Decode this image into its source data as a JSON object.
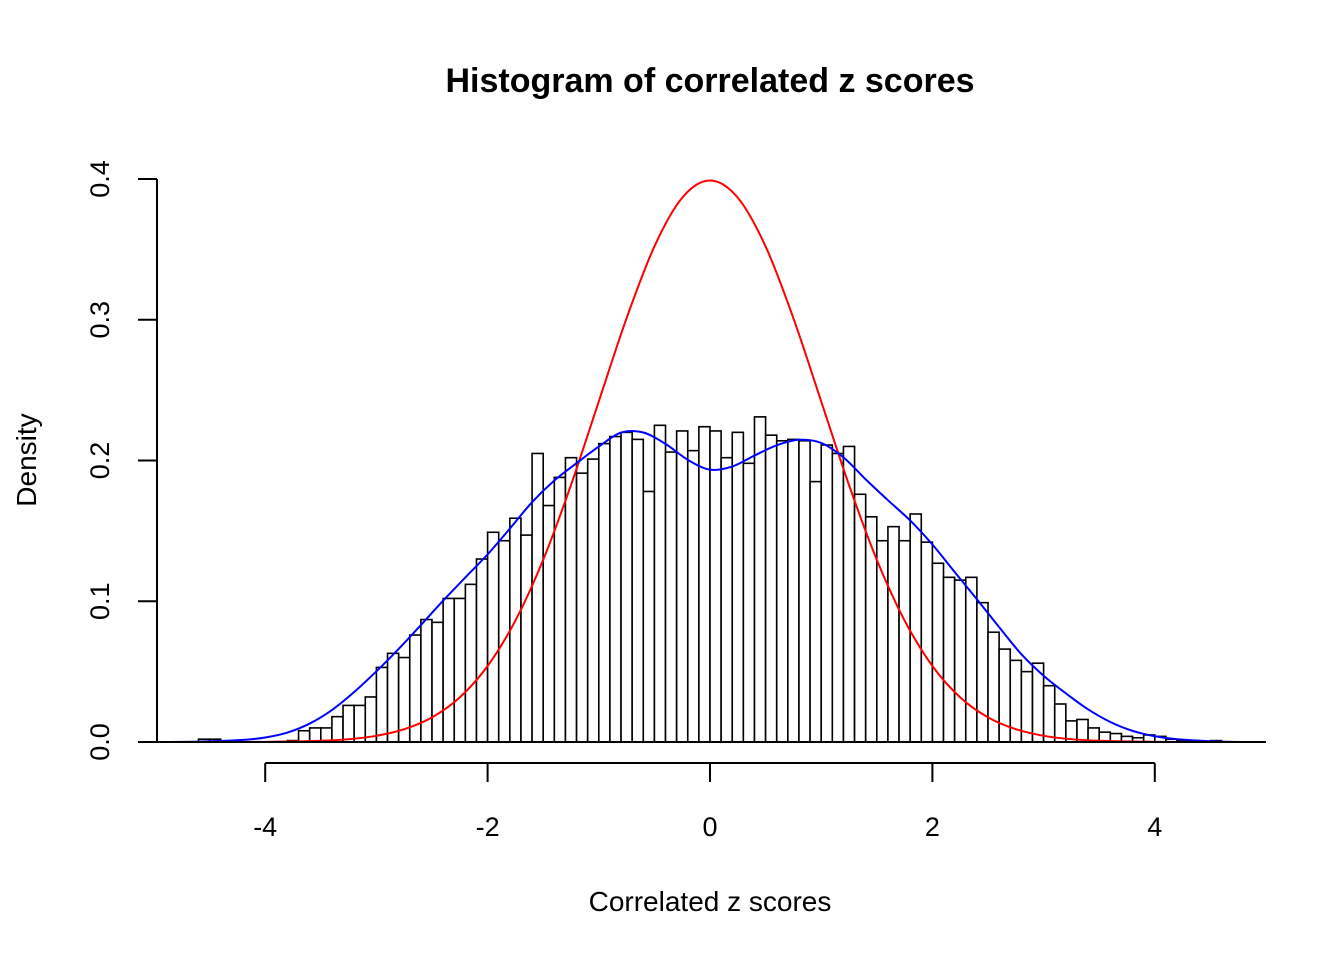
{
  "chart_data": {
    "type": "bar",
    "title": "Histogram of correlated z scores",
    "xlabel": "Correlated z scores",
    "ylabel": "Density",
    "xlim": [
      -5,
      5
    ],
    "ylim": [
      0,
      0.4
    ],
    "x_ticks": [
      "-4",
      "-2",
      "0",
      "2",
      "4"
    ],
    "x_tick_values": [
      -4,
      -2,
      0,
      2,
      4
    ],
    "y_ticks": [
      "0.0",
      "0.1",
      "0.2",
      "0.3",
      "0.4"
    ],
    "y_tick_values": [
      0,
      0.1,
      0.2,
      0.3,
      0.4
    ],
    "bin_width": 0.1,
    "bins_start": [
      -4.6,
      -4.5,
      -4.4,
      -4.3,
      -4.2,
      -4.1,
      -4.0,
      -3.9,
      -3.8,
      -3.7,
      -3.6,
      -3.5,
      -3.4,
      -3.3,
      -3.2,
      -3.1,
      -3.0,
      -2.9,
      -2.8,
      -2.7,
      -2.6,
      -2.5,
      -2.4,
      -2.3,
      -2.2,
      -2.1,
      -2.0,
      -1.9,
      -1.8,
      -1.7,
      -1.6,
      -1.5,
      -1.4,
      -1.3,
      -1.2,
      -1.1,
      -1.0,
      -0.9,
      -0.8,
      -0.7,
      -0.6,
      -0.5,
      -0.4,
      -0.3,
      -0.2,
      -0.1,
      0.0,
      0.1,
      0.2,
      0.3,
      0.4,
      0.5,
      0.6,
      0.7,
      0.8,
      0.9,
      1.0,
      1.1,
      1.2,
      1.3,
      1.4,
      1.5,
      1.6,
      1.7,
      1.8,
      1.9,
      2.0,
      2.1,
      2.2,
      2.3,
      2.4,
      2.5,
      2.6,
      2.7,
      2.8,
      2.9,
      3.0,
      3.1,
      3.2,
      3.3,
      3.4,
      3.5,
      3.6,
      3.7,
      3.8,
      3.9,
      4.0,
      4.1,
      4.2,
      4.3,
      4.4,
      4.5
    ],
    "density": [
      0.002,
      0.002,
      0.0,
      0.0,
      0.0,
      0.0,
      0.0,
      0.0,
      0.001,
      0.008,
      0.01,
      0.01,
      0.018,
      0.026,
      0.026,
      0.032,
      0.053,
      0.063,
      0.06,
      0.076,
      0.087,
      0.085,
      0.102,
      0.102,
      0.112,
      0.13,
      0.149,
      0.143,
      0.159,
      0.147,
      0.205,
      0.168,
      0.188,
      0.202,
      0.191,
      0.201,
      0.212,
      0.217,
      0.22,
      0.215,
      0.178,
      0.225,
      0.206,
      0.221,
      0.207,
      0.224,
      0.221,
      0.202,
      0.22,
      0.198,
      0.231,
      0.218,
      0.214,
      0.215,
      0.214,
      0.185,
      0.211,
      0.205,
      0.21,
      0.176,
      0.16,
      0.143,
      0.153,
      0.143,
      0.162,
      0.142,
      0.127,
      0.117,
      0.115,
      0.117,
      0.099,
      0.078,
      0.066,
      0.058,
      0.05,
      0.056,
      0.04,
      0.027,
      0.015,
      0.016,
      0.01,
      0.007,
      0.006,
      0.004,
      0.003,
      0.005,
      0.004,
      0.002,
      0.001,
      0.001,
      0.0,
      0.001
    ],
    "series": [
      {
        "color": "#000000"
      },
      {
        "color": "#ff0000",
        "x": [
          -5.0,
          -4.75,
          -4.5,
          -4.25,
          -4.0,
          -3.75,
          -3.5,
          -3.25,
          -3.0,
          -2.75,
          -2.5,
          -2.25,
          -2.0,
          -1.75,
          -1.5,
          -1.25,
          -1.0,
          -0.75,
          -0.5,
          -0.25,
          0.0,
          0.25,
          0.5,
          0.75,
          1.0,
          1.25,
          1.5,
          1.75,
          2.0,
          2.25,
          2.5,
          2.75,
          3.0,
          3.25,
          3.5,
          3.75,
          4.0,
          4.25,
          4.5,
          4.75,
          5.0
        ],
        "y": [
          0.0,
          0.0,
          0.0,
          0.0001,
          0.0001,
          0.0004,
          0.0009,
          0.002,
          0.0044,
          0.0091,
          0.0175,
          0.0317,
          0.054,
          0.0863,
          0.1295,
          0.1826,
          0.242,
          0.3011,
          0.3521,
          0.3867,
          0.3989,
          0.3867,
          0.3521,
          0.3011,
          0.242,
          0.1826,
          0.1295,
          0.0863,
          0.054,
          0.0317,
          0.0175,
          0.0091,
          0.0044,
          0.002,
          0.0009,
          0.0004,
          0.0001,
          0.0001,
          0.0,
          0.0,
          0.0
        ]
      },
      {
        "color": "#0000ff",
        "x": [
          -5.0,
          -4.6,
          -4.2,
          -4.0,
          -3.8,
          -3.6,
          -3.4,
          -3.2,
          -3.0,
          -2.8,
          -2.6,
          -2.4,
          -2.2,
          -2.0,
          -1.8,
          -1.6,
          -1.4,
          -1.2,
          -1.0,
          -0.8,
          -0.6,
          -0.4,
          -0.2,
          0.0,
          0.2,
          0.4,
          0.6,
          0.8,
          1.0,
          1.2,
          1.4,
          1.6,
          1.8,
          2.0,
          2.2,
          2.4,
          2.6,
          2.8,
          3.0,
          3.2,
          3.4,
          3.6,
          3.8,
          4.0,
          4.2,
          4.6,
          5.0
        ],
        "y": [
          0.0,
          0.0003,
          0.0015,
          0.0032,
          0.0067,
          0.0131,
          0.0227,
          0.0355,
          0.0502,
          0.0661,
          0.0831,
          0.1004,
          0.1169,
          0.1333,
          0.1516,
          0.1704,
          0.1858,
          0.1981,
          0.2099,
          0.2198,
          0.2199,
          0.2118,
          0.2005,
          0.1935,
          0.1957,
          0.2035,
          0.2108,
          0.2147,
          0.2125,
          0.2022,
          0.1866,
          0.1718,
          0.1574,
          0.1403,
          0.1208,
          0.1014,
          0.0816,
          0.0624,
          0.0471,
          0.0346,
          0.0232,
          0.0142,
          0.0079,
          0.0041,
          0.002,
          0.0003,
          0.0
        ]
      }
    ]
  }
}
